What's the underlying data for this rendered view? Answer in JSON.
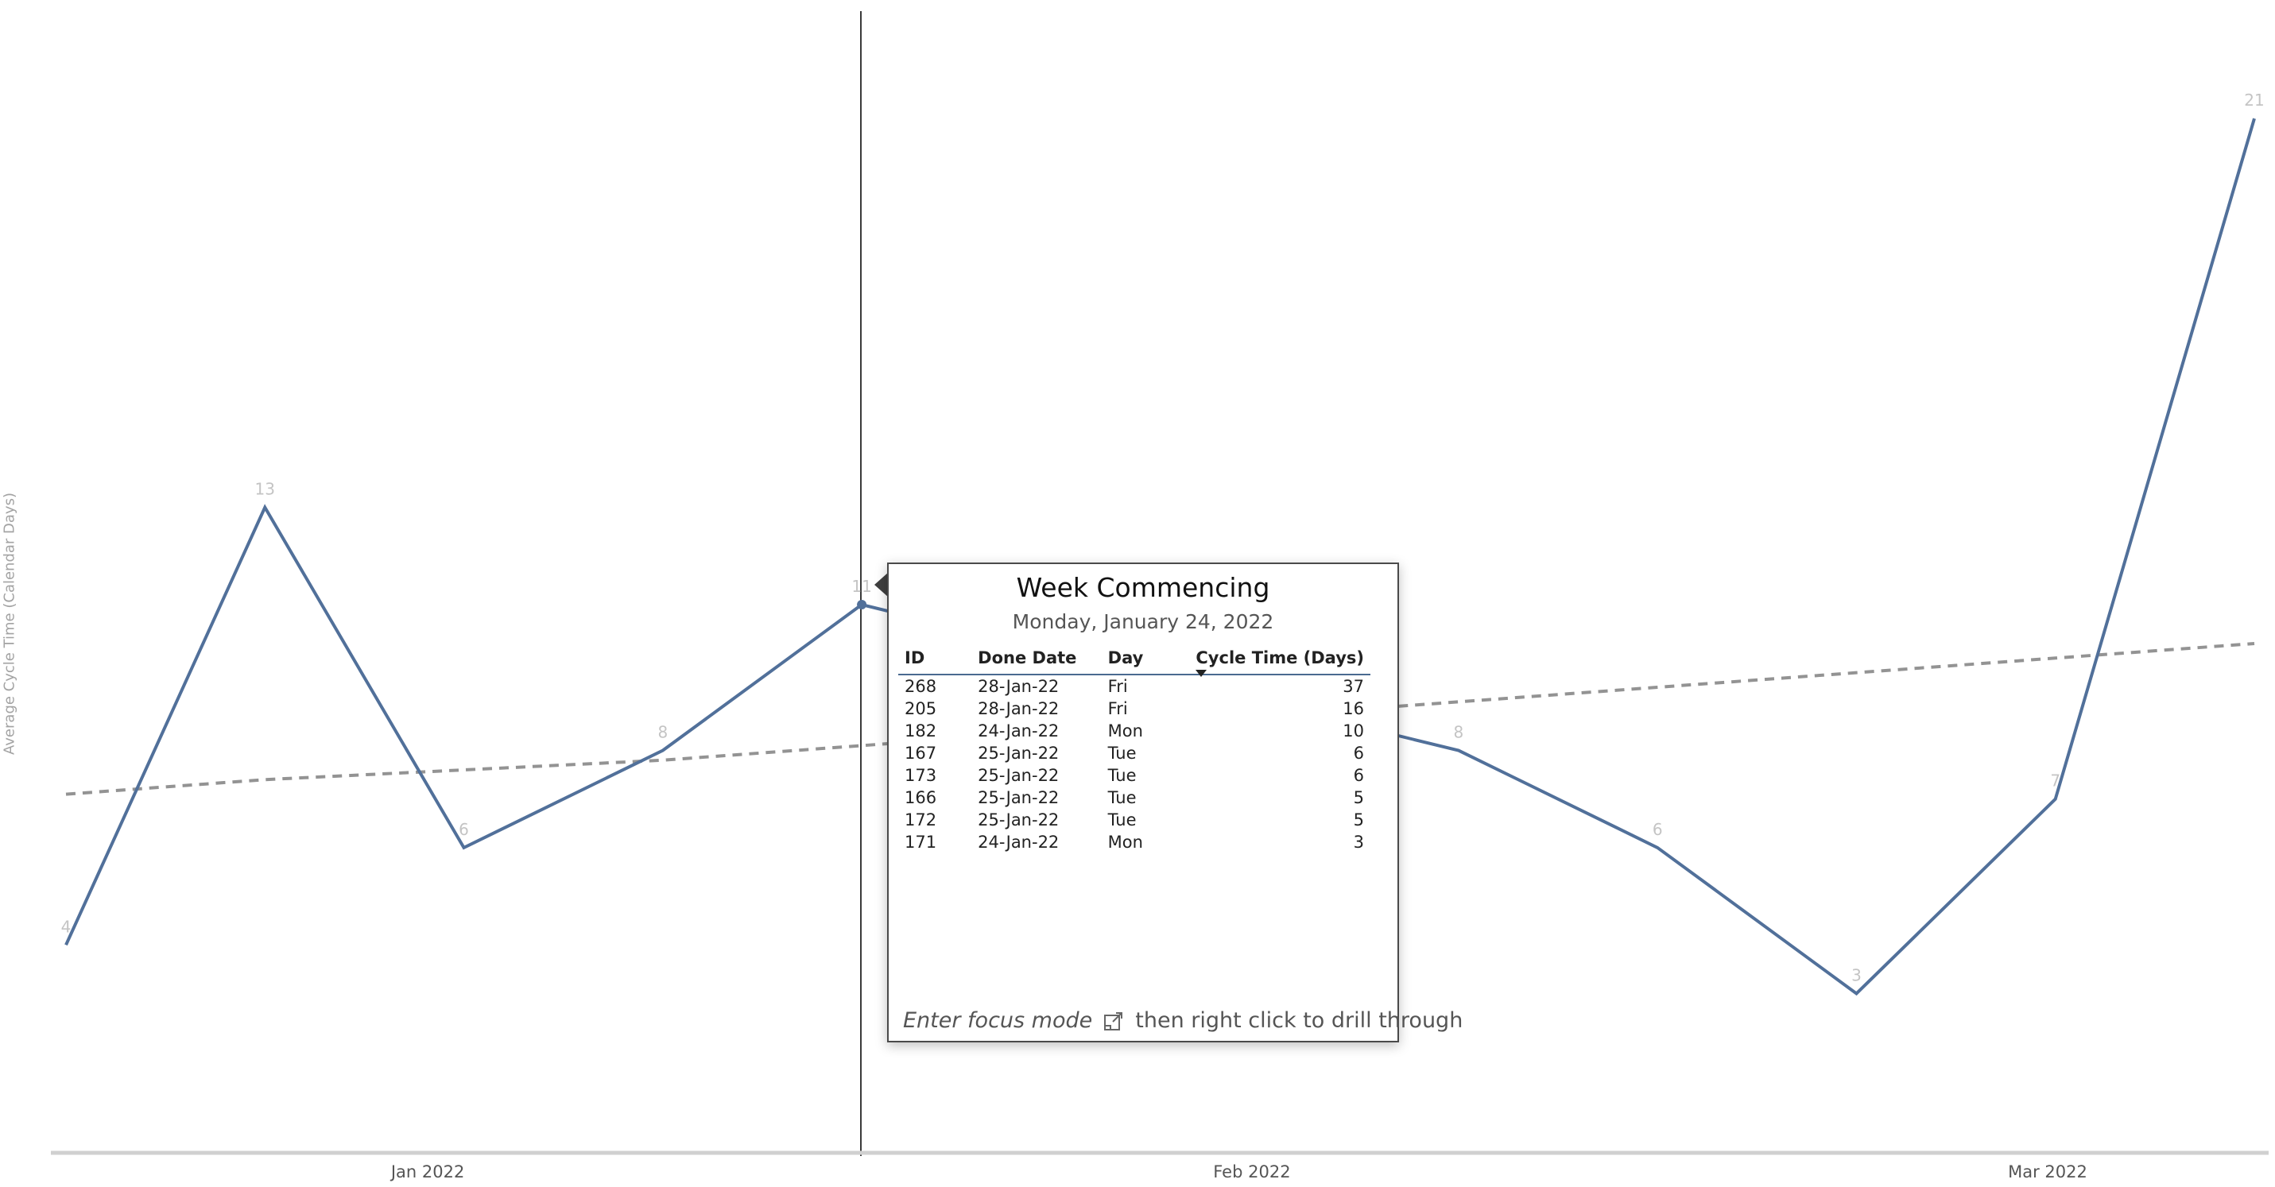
{
  "chart_data": {
    "type": "line",
    "ylabel": "Average Cycle Time (Calendar Days)",
    "xlabel": "",
    "title": "",
    "x_axis_ticks": [
      "Jan 2022",
      "Feb 2022",
      "Mar 2022"
    ],
    "x": [
      "2021-12-27",
      "2022-01-03",
      "2022-01-10",
      "2022-01-17",
      "2022-01-24",
      "2022-01-31",
      "2022-02-07",
      "2022-02-14",
      "2022-02-21",
      "2022-02-28",
      "2022-03-07",
      "2022-03-14"
    ],
    "series": [
      {
        "values": [
          4,
          13,
          6,
          8,
          11,
          10,
          9,
          8,
          6,
          3,
          7,
          21
        ],
        "data_labels": [
          "4",
          "13",
          "6",
          "8",
          "11",
          "",
          "",
          "8",
          "6",
          "3",
          "7",
          "21"
        ],
        "color": "#51709a"
      },
      {
        "values": [
          7.1,
          7.4,
          7.6,
          7.8,
          8.1,
          8.4,
          8.7,
          9.0,
          9.3,
          9.6,
          9.9,
          10.2
        ],
        "style": "dashed",
        "color": "#939393"
      }
    ],
    "ylim": [
      0,
      22
    ],
    "grid": false,
    "highlighted_x": "2022-01-24"
  },
  "tooltip": {
    "title": "Week Commencing",
    "subtitle": "Monday, January 24, 2022",
    "columns": [
      "ID",
      "Done Date",
      "Day",
      "Cycle Time (Days)"
    ],
    "rows": [
      [
        "268",
        "28-Jan-22",
        "Fri",
        "37"
      ],
      [
        "205",
        "28-Jan-22",
        "Fri",
        "16"
      ],
      [
        "182",
        "24-Jan-22",
        "Mon",
        "10"
      ],
      [
        "167",
        "25-Jan-22",
        "Tue",
        "6"
      ],
      [
        "173",
        "25-Jan-22",
        "Tue",
        "6"
      ],
      [
        "166",
        "25-Jan-22",
        "Tue",
        "5"
      ],
      [
        "172",
        "25-Jan-22",
        "Tue",
        "5"
      ],
      [
        "171",
        "24-Jan-22",
        "Mon",
        "3"
      ]
    ],
    "footer_italic": "Enter focus mode",
    "footer_rest": "then right click to drill through",
    "footer_icon": "focus-mode-icon"
  }
}
